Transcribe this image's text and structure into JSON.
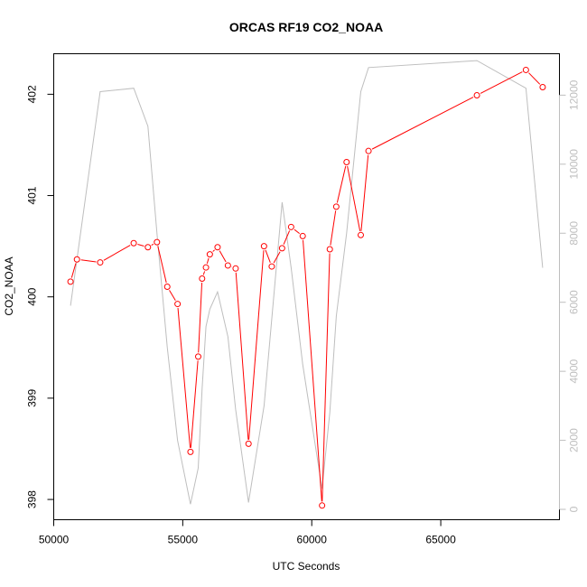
{
  "chart_data": {
    "type": "line",
    "title": "ORCAS RF19 CO2_NOAA",
    "xlabel": "UTC Seconds",
    "ylabel": "CO2_NOAA",
    "xlim": [
      50000,
      69600
    ],
    "ylim": [
      397.8,
      402.4
    ],
    "y2lim": [
      -300,
      13200
    ],
    "x_ticks": [
      50000,
      55000,
      60000,
      65000
    ],
    "y_ticks": [
      398,
      399,
      400,
      401,
      402
    ],
    "y2_ticks": [
      0,
      2000,
      4000,
      6000,
      8000,
      10000,
      12000
    ],
    "grid": false,
    "colors": {
      "series": "#ff0000",
      "secondary": "#bebebe",
      "axes": "#000000"
    },
    "series": [
      {
        "axis": "left",
        "style": "line-with-circle-markers",
        "x": [
          50650,
          50900,
          51800,
          53100,
          53650,
          54000,
          54400,
          54800,
          55300,
          55600,
          55750,
          55900,
          56050,
          56350,
          56750,
          57050,
          57550,
          58150,
          58450,
          58850,
          59200,
          59650,
          60400,
          60700,
          60950,
          61350,
          61900,
          62200,
          66400,
          68300,
          68950
        ],
        "y": [
          400.15,
          400.37,
          400.34,
          400.53,
          400.49,
          400.54,
          400.1,
          399.93,
          398.47,
          399.41,
          400.18,
          400.29,
          400.42,
          400.49,
          400.31,
          400.28,
          398.55,
          400.5,
          400.3,
          400.48,
          400.69,
          400.6,
          397.94,
          400.47,
          400.89,
          401.33,
          400.61,
          401.44,
          401.99,
          402.24,
          402.07
        ]
      },
      {
        "axis": "right",
        "style": "line",
        "x": [
          50650,
          51800,
          53100,
          53650,
          54000,
          54400,
          54800,
          55300,
          55600,
          55750,
          55900,
          56050,
          56350,
          56750,
          57050,
          57550,
          58150,
          58850,
          59200,
          59650,
          60400,
          60700,
          60950,
          61350,
          61900,
          62200,
          66400,
          68300,
          68950
        ],
        "y": [
          5900,
          12100,
          12200,
          11100,
          8000,
          4700,
          2000,
          150,
          1200,
          3500,
          5300,
          5800,
          6300,
          5000,
          2900,
          200,
          3000,
          8900,
          7000,
          4200,
          600,
          2800,
          5600,
          8000,
          12100,
          12800,
          13000,
          12200,
          7000
        ]
      }
    ]
  }
}
